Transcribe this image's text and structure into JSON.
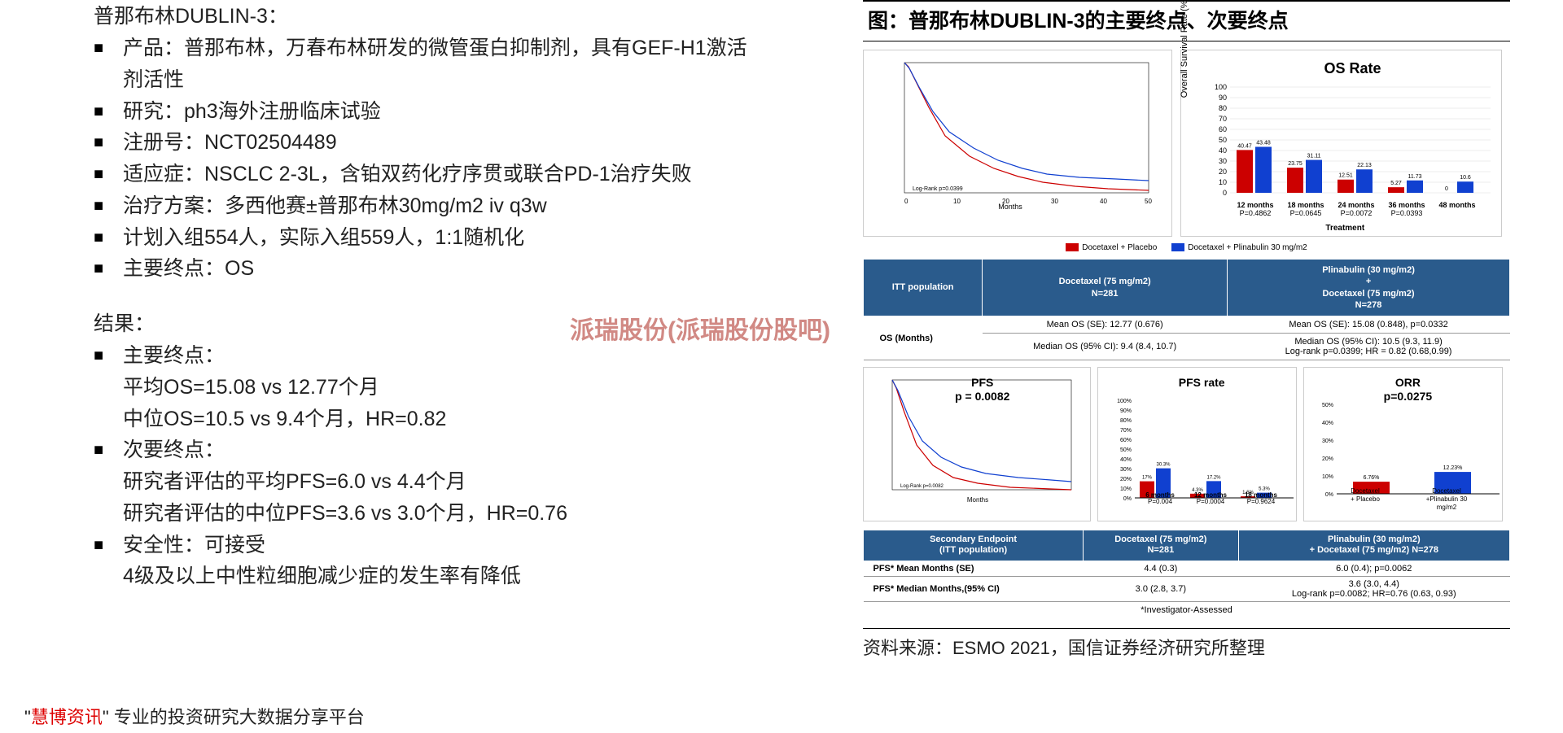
{
  "left": {
    "title": "普那布林DUBLIN-3：",
    "bullets": [
      "产品：普那布林，万春布林研发的微管蛋白抑制剂，具有GEF-H1激活剂活性",
      "研究：ph3海外注册临床试验",
      "注册号：NCT02504489",
      "适应症：NSCLC 2-3L，含铂双药化疗序贯或联合PD-1治疗失败",
      "治疗方案：多西他赛±普那布林30mg/m2 iv q3w",
      "计划入组554人，实际入组559人，1:1随机化",
      "主要终点：OS"
    ],
    "results_heading": "结果：",
    "results": [
      {
        "head": "主要终点：",
        "lines": [
          "平均OS=15.08 vs 12.77个月",
          "中位OS=10.5 vs 9.4个月，HR=0.82"
        ]
      },
      {
        "head": "次要终点：",
        "lines": [
          "研究者评估的平均PFS=6.0 vs 4.4个月",
          "研究者评估的中位PFS=3.6 vs 3.0个月，HR=0.76"
        ]
      },
      {
        "head": "安全性：可接受",
        "lines": [
          "4级及以上中性粒细胞减少症的发生率有降低"
        ]
      }
    ]
  },
  "right": {
    "fig_title": "图：普那布林DUBLIN-3的主要终点、次要终点",
    "colors": {
      "placebo": "#cc0000",
      "plinabulin": "#1040d0",
      "header_bg": "#2a5b8c"
    },
    "os_rate": {
      "title": "OS Rate",
      "ylabel": "Overall Survival Rate (%)",
      "ylim": [
        0,
        100
      ],
      "ytick": 10,
      "groups": [
        {
          "label": "12 months",
          "sub": "P=0.4862",
          "placebo": 40.47,
          "plin": 43.48
        },
        {
          "label": "18 months",
          "sub": "P=0.0645",
          "placebo": 23.75,
          "plin": 31.11
        },
        {
          "label": "24 months",
          "sub": "P=0.0072",
          "placebo": 12.51,
          "plin": 22.13
        },
        {
          "label": "36 months",
          "sub": "P=0.0393",
          "placebo": 5.27,
          "plin": 11.73
        },
        {
          "label": "48 months",
          "sub": "",
          "placebo": 0,
          "plin": 10.6
        }
      ],
      "xaxis": "Treatment",
      "legend": [
        "Docetaxel + Placebo",
        "Docetaxel + Plinabulin 30 mg/m2"
      ]
    },
    "os_table": {
      "header": [
        "ITT population",
        "Docetaxel (75 mg/m2)\nN=281",
        "Plinabulin (30 mg/m2)\n+\nDocetaxel (75 mg/m2)\nN=278"
      ],
      "row_label": "OS (Months)",
      "mean": [
        "Mean OS (SE): 12.77 (0.676)",
        "Mean OS (SE): 15.08 (0.848), p=0.0332"
      ],
      "median": [
        "Median OS (95% CI): 9.4 (8.4, 10.7)",
        "Median OS (95% CI): 10.5 (9.3, 11.9)\nLog-rank p=0.0399; HR = 0.82 (0.68,0.99)"
      ]
    },
    "pfs": {
      "title": "PFS",
      "p": "p = 0.0082"
    },
    "pfs_rate": {
      "title": "PFS rate",
      "groups": [
        {
          "label": "6 months",
          "sub": "P=0.004",
          "placebo": 17.0,
          "plin": 30.3
        },
        {
          "label": "12 months",
          "sub": "P=0.0004",
          "placebo": 4.3,
          "plin": 17.2
        },
        {
          "label": "18 months",
          "sub": "P=0.9624",
          "placebo": 1.6,
          "plin": 5.3
        }
      ],
      "ylim": [
        0,
        100
      ]
    },
    "orr": {
      "title": "ORR",
      "p": "p=0.0275",
      "ylim": [
        0,
        50
      ],
      "bars": [
        {
          "label": "Docetaxel\n+ Placebo",
          "val": 6.76,
          "color": "#cc0000"
        },
        {
          "label": "Docetaxel\n+Plinabulin 30 mg/m2",
          "val": 12.23,
          "color": "#1040d0"
        }
      ]
    },
    "se_table": {
      "header": [
        "Secondary Endpoint\n(ITT population)",
        "Docetaxel (75 mg/m2)\nN=281",
        "Plinabulin (30 mg/m2)\n+ Docetaxel (75 mg/m2)  N=278"
      ],
      "rows": [
        [
          "PFS* Mean Months (SE)",
          "4.4 (0.3)",
          "6.0 (0.4); p=0.0062"
        ],
        [
          "PFS* Median Months,(95% CI)",
          "3.0 (2.8, 3.7)",
          "3.6 (3.0, 4.4)\nLog-rank p=0.0082; HR=0.76 (0.63, 0.93)"
        ]
      ],
      "note": "*Investigator-Assessed"
    },
    "source": "资料来源：ESMO 2021，国信证券经济研究所整理"
  },
  "watermark": "派瑞股份(派瑞股份股吧)",
  "footer": {
    "red": "慧博资讯",
    "rest": "\" 专业的投资研究大数据分享平台"
  }
}
